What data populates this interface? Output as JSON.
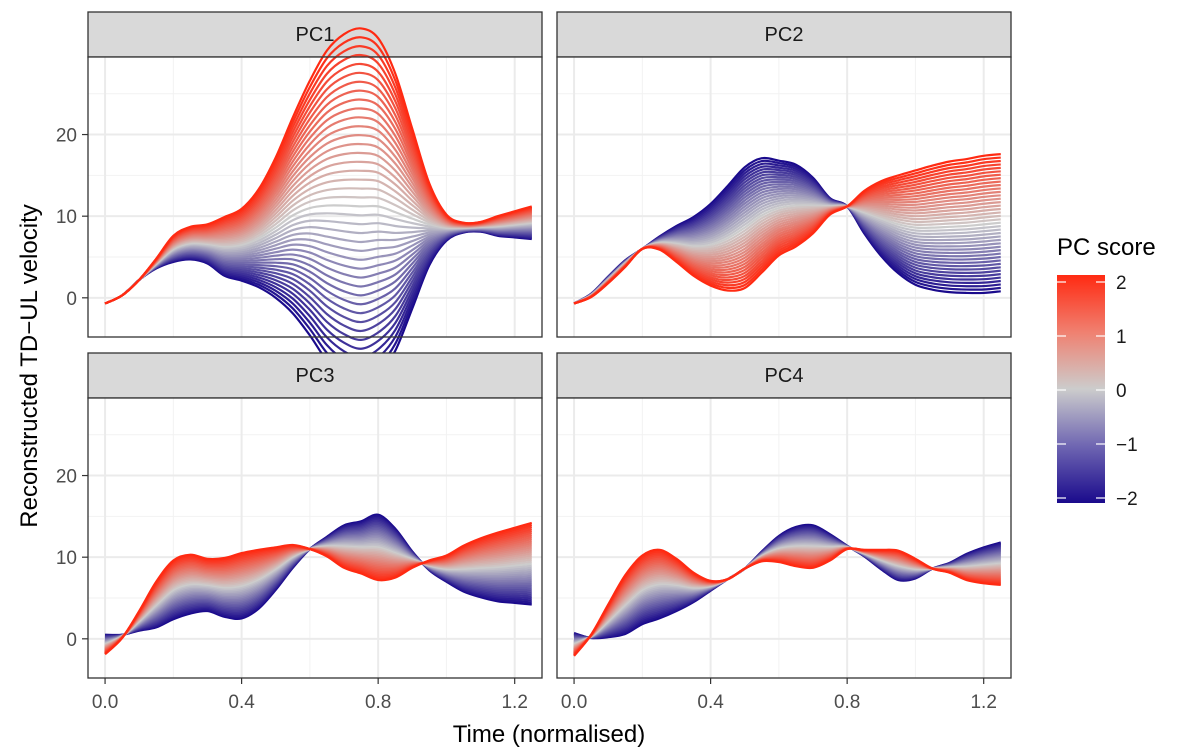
{
  "chart_data": {
    "type": "line",
    "title": "",
    "xlabel": "Time (normalised)",
    "ylabel": "Reconstructed TD−UL velocity",
    "xlim": [
      -0.05,
      1.28
    ],
    "ylim": [
      -4.8,
      29.5
    ],
    "x_ticks": [
      0.0,
      0.4,
      0.8,
      1.2
    ],
    "x_tick_labels": [
      "0.0",
      "0.4",
      "0.8",
      "1.2"
    ],
    "y_ticks": [
      0,
      10,
      20
    ],
    "y_tick_labels": [
      "0",
      "10",
      "20"
    ],
    "grid": true,
    "facets": [
      "PC1",
      "PC2",
      "PC3",
      "PC4"
    ],
    "legend": {
      "title": "PC score",
      "position": "right",
      "range": [
        -2,
        2
      ],
      "ticks": [
        2,
        1,
        0,
        -1,
        -2
      ],
      "tick_labels": [
        "2",
        "1",
        "0",
        "−1",
        "−2"
      ],
      "colors": {
        "low": "#1a0a8c",
        "mid": "#cccccc",
        "high": "#ff2a12"
      }
    },
    "score_min": -2,
    "score_max": 2,
    "score_count": 41,
    "x": [
      0.0,
      0.05,
      0.1,
      0.15,
      0.2,
      0.25,
      0.3,
      0.35,
      0.4,
      0.45,
      0.5,
      0.55,
      0.6,
      0.65,
      0.7,
      0.75,
      0.8,
      0.85,
      0.9,
      0.95,
      1.0,
      1.05,
      1.1,
      1.15,
      1.2,
      1.25
    ],
    "mean_curve": [
      -0.7,
      0.3,
      2.2,
      4.2,
      6.0,
      6.7,
      6.6,
      6.3,
      6.5,
      7.3,
      8.6,
      10.1,
      11.0,
      11.3,
      11.3,
      11.2,
      11.2,
      10.5,
      9.7,
      9.0,
      8.6,
      8.6,
      8.7,
      8.8,
      9.0,
      9.2
    ],
    "pc_loadings": [
      [
        0.0,
        0.0,
        0.0,
        0.3,
        0.8,
        1.0,
        1.2,
        1.8,
        2.2,
        3.0,
        4.3,
        6.0,
        7.8,
        9.5,
        10.5,
        10.9,
        10.3,
        8.5,
        5.5,
        2.5,
        0.8,
        0.3,
        0.3,
        0.6,
        0.8,
        1.0
      ],
      [
        0.0,
        -0.1,
        -0.2,
        -0.2,
        0.0,
        -0.4,
        -1.1,
        -1.8,
        -2.5,
        -3.2,
        -3.7,
        -3.5,
        -2.9,
        -2.5,
        -1.7,
        -0.5,
        0.0,
        1.3,
        2.3,
        3.0,
        3.5,
        3.8,
        4.0,
        4.1,
        4.2,
        4.2
      ],
      [
        -0.6,
        -0.1,
        0.6,
        1.4,
        1.8,
        1.8,
        1.6,
        1.8,
        2.0,
        1.8,
        1.3,
        0.7,
        0.0,
        -0.6,
        -1.3,
        -1.6,
        -2.0,
        -1.5,
        -0.5,
        0.3,
        0.8,
        1.4,
        1.8,
        2.1,
        2.3,
        2.5
      ],
      [
        -0.7,
        0.1,
        1.0,
        1.8,
        2.1,
        2.1,
        1.6,
        0.9,
        0.3,
        0.0,
        0.0,
        -0.3,
        -0.8,
        -1.2,
        -1.3,
        -0.8,
        -0.1,
        0.2,
        0.6,
        0.9,
        0.6,
        0.0,
        -0.3,
        -0.8,
        -1.1,
        -1.3
      ]
    ]
  }
}
